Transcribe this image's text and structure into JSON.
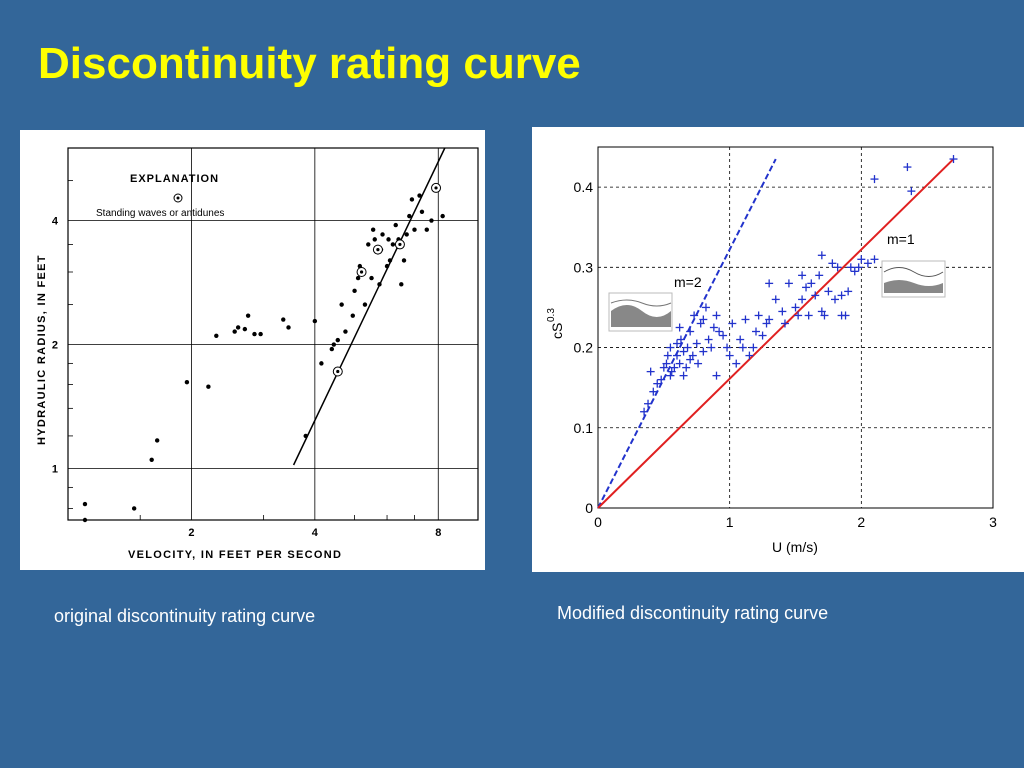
{
  "slide": {
    "title": "Discontinuity rating curve",
    "captions": {
      "left": "original discontinuity rating curve",
      "right": "Modified discontinuity rating curve"
    },
    "colors": {
      "background": "#336699",
      "title": "#FFFF00",
      "caption": "#FFFFFF"
    }
  },
  "chart_data": [
    {
      "type": "scatter",
      "xlabel": "VELOCITY, IN FEET PER SECOND",
      "ylabel": "HYDRAULIC RADIUS, IN FEET",
      "xscale": "log",
      "yscale": "log",
      "xlim": [
        1,
        10
      ],
      "ylim": [
        0.75,
        6
      ],
      "x_ticks": [
        2,
        4,
        8
      ],
      "y_ticks": [
        1,
        2,
        4
      ],
      "grid": true,
      "legend_title": "EXPLANATION",
      "legend_entries": [
        "Standing waves or antidunes"
      ],
      "series": [
        {
          "marker": "dot",
          "points": [
            [
              1.1,
              0.75
            ],
            [
              1.1,
              0.82
            ],
            [
              1.45,
              0.8
            ],
            [
              1.6,
              1.05
            ],
            [
              1.65,
              1.17
            ],
            [
              1.95,
              1.62
            ],
            [
              2.2,
              1.58
            ],
            [
              2.3,
              2.1
            ],
            [
              2.55,
              2.15
            ],
            [
              2.6,
              2.2
            ],
            [
              2.7,
              2.18
            ],
            [
              2.75,
              2.35
            ],
            [
              2.85,
              2.12
            ],
            [
              2.95,
              2.12
            ],
            [
              3.35,
              2.3
            ],
            [
              3.45,
              2.2
            ],
            [
              3.8,
              1.2
            ],
            [
              4.0,
              2.28
            ],
            [
              4.15,
              1.8
            ],
            [
              4.4,
              1.95
            ],
            [
              4.45,
              2.0
            ],
            [
              4.55,
              2.05
            ],
            [
              4.65,
              2.5
            ],
            [
              4.75,
              2.15
            ],
            [
              4.95,
              2.35
            ],
            [
              5.0,
              2.7
            ],
            [
              5.1,
              2.9
            ],
            [
              5.15,
              3.1
            ],
            [
              5.3,
              2.5
            ],
            [
              5.4,
              3.5
            ],
            [
              5.5,
              2.9
            ],
            [
              5.55,
              3.8
            ],
            [
              5.6,
              3.6
            ],
            [
              5.75,
              2.8
            ],
            [
              5.8,
              3.4
            ],
            [
              5.85,
              3.7
            ],
            [
              6.0,
              3.1
            ],
            [
              6.05,
              3.6
            ],
            [
              6.1,
              3.2
            ],
            [
              6.2,
              3.5
            ],
            [
              6.3,
              3.9
            ],
            [
              6.4,
              3.6
            ],
            [
              6.5,
              2.8
            ],
            [
              6.6,
              3.2
            ],
            [
              6.7,
              3.7
            ],
            [
              6.8,
              4.1
            ],
            [
              6.9,
              4.5
            ],
            [
              7.0,
              3.8
            ],
            [
              7.2,
              4.6
            ],
            [
              7.3,
              4.2
            ],
            [
              7.5,
              3.8
            ],
            [
              7.7,
              4.0
            ],
            [
              7.9,
              4.8
            ],
            [
              8.2,
              4.1
            ]
          ]
        },
        {
          "name": "Standing waves or antidunes",
          "marker": "circled-dot",
          "points": [
            [
              4.55,
              1.72
            ],
            [
              5.2,
              3.0
            ],
            [
              5.7,
              3.4
            ],
            [
              6.45,
              3.5
            ],
            [
              7.9,
              4.8
            ]
          ]
        }
      ],
      "fit_line": [
        [
          3.55,
          1.02
        ],
        [
          8.3,
          6.0
        ]
      ]
    },
    {
      "type": "scatter",
      "xlabel": "U (m/s)",
      "ylabel": "cS",
      "ylabel_superscript": "0.3",
      "xlim": [
        0,
        3
      ],
      "ylim": [
        0,
        0.45
      ],
      "x_ticks": [
        "0",
        "1",
        "2",
        "3"
      ],
      "y_ticks": [
        "0",
        "0.1",
        "0.2",
        "0.3",
        "0.4"
      ],
      "grid": true,
      "annotations": [
        "m=2",
        "m=1"
      ],
      "lines": [
        {
          "label": "m=2",
          "style": "dashed",
          "color": "#2233CC",
          "points": [
            [
              0,
              0
            ],
            [
              1.35,
              0.435
            ]
          ]
        },
        {
          "label": "m=1",
          "style": "solid",
          "color": "#E02020",
          "points": [
            [
              0,
              0
            ],
            [
              2.7,
              0.435
            ]
          ]
        }
      ],
      "series": [
        {
          "marker": "plus",
          "color": "#2233CC",
          "points": [
            [
              0.35,
              0.12
            ],
            [
              0.38,
              0.13
            ],
            [
              0.42,
              0.145
            ],
            [
              0.45,
              0.155
            ],
            [
              0.48,
              0.16
            ],
            [
              0.5,
              0.175
            ],
            [
              0.52,
              0.18
            ],
            [
              0.53,
              0.19
            ],
            [
              0.55,
              0.2
            ],
            [
              0.56,
              0.17
            ],
            [
              0.58,
              0.175
            ],
            [
              0.6,
              0.19
            ],
            [
              0.6,
              0.205
            ],
            [
              0.62,
              0.18
            ],
            [
              0.63,
              0.21
            ],
            [
              0.65,
              0.165
            ],
            [
              0.65,
              0.195
            ],
            [
              0.67,
              0.175
            ],
            [
              0.68,
              0.2
            ],
            [
              0.7,
              0.22
            ],
            [
              0.7,
              0.185
            ],
            [
              0.72,
              0.19
            ],
            [
              0.73,
              0.24
            ],
            [
              0.75,
              0.205
            ],
            [
              0.76,
              0.18
            ],
            [
              0.78,
              0.23
            ],
            [
              0.8,
              0.195
            ],
            [
              0.82,
              0.25
            ],
            [
              0.84,
              0.21
            ],
            [
              0.86,
              0.2
            ],
            [
              0.88,
              0.225
            ],
            [
              0.9,
              0.165
            ],
            [
              0.92,
              0.22
            ],
            [
              0.95,
              0.215
            ],
            [
              0.98,
              0.2
            ],
            [
              1.0,
              0.19
            ],
            [
              1.02,
              0.23
            ],
            [
              1.05,
              0.18
            ],
            [
              1.08,
              0.21
            ],
            [
              1.1,
              0.2
            ],
            [
              1.12,
              0.235
            ],
            [
              1.15,
              0.19
            ],
            [
              1.18,
              0.2
            ],
            [
              1.2,
              0.22
            ],
            [
              1.22,
              0.24
            ],
            [
              1.25,
              0.215
            ],
            [
              1.28,
              0.23
            ],
            [
              1.3,
              0.235
            ],
            [
              1.35,
              0.26
            ],
            [
              1.4,
              0.245
            ],
            [
              1.42,
              0.23
            ],
            [
              1.45,
              0.28
            ],
            [
              1.5,
              0.25
            ],
            [
              1.52,
              0.24
            ],
            [
              1.55,
              0.26
            ],
            [
              1.58,
              0.275
            ],
            [
              1.6,
              0.24
            ],
            [
              1.62,
              0.28
            ],
            [
              1.65,
              0.265
            ],
            [
              1.68,
              0.29
            ],
            [
              1.7,
              0.245
            ],
            [
              1.72,
              0.24
            ],
            [
              1.75,
              0.27
            ],
            [
              1.78,
              0.305
            ],
            [
              1.8,
              0.26
            ],
            [
              1.82,
              0.3
            ],
            [
              1.85,
              0.265
            ],
            [
              1.88,
              0.24
            ],
            [
              1.9,
              0.27
            ],
            [
              1.92,
              0.3
            ],
            [
              1.95,
              0.295
            ],
            [
              1.98,
              0.3
            ],
            [
              2.0,
              0.31
            ],
            [
              2.05,
              0.305
            ],
            [
              2.1,
              0.41
            ],
            [
              2.1,
              0.31
            ],
            [
              2.35,
              0.425
            ],
            [
              2.38,
              0.395
            ],
            [
              2.7,
              0.435
            ],
            [
              0.4,
              0.17
            ],
            [
              0.55,
              0.165
            ],
            [
              0.62,
              0.225
            ],
            [
              0.8,
              0.235
            ],
            [
              0.9,
              0.24
            ],
            [
              1.3,
              0.28
            ],
            [
              1.55,
              0.29
            ],
            [
              1.7,
              0.315
            ],
            [
              1.85,
              0.24
            ]
          ]
        }
      ]
    }
  ]
}
